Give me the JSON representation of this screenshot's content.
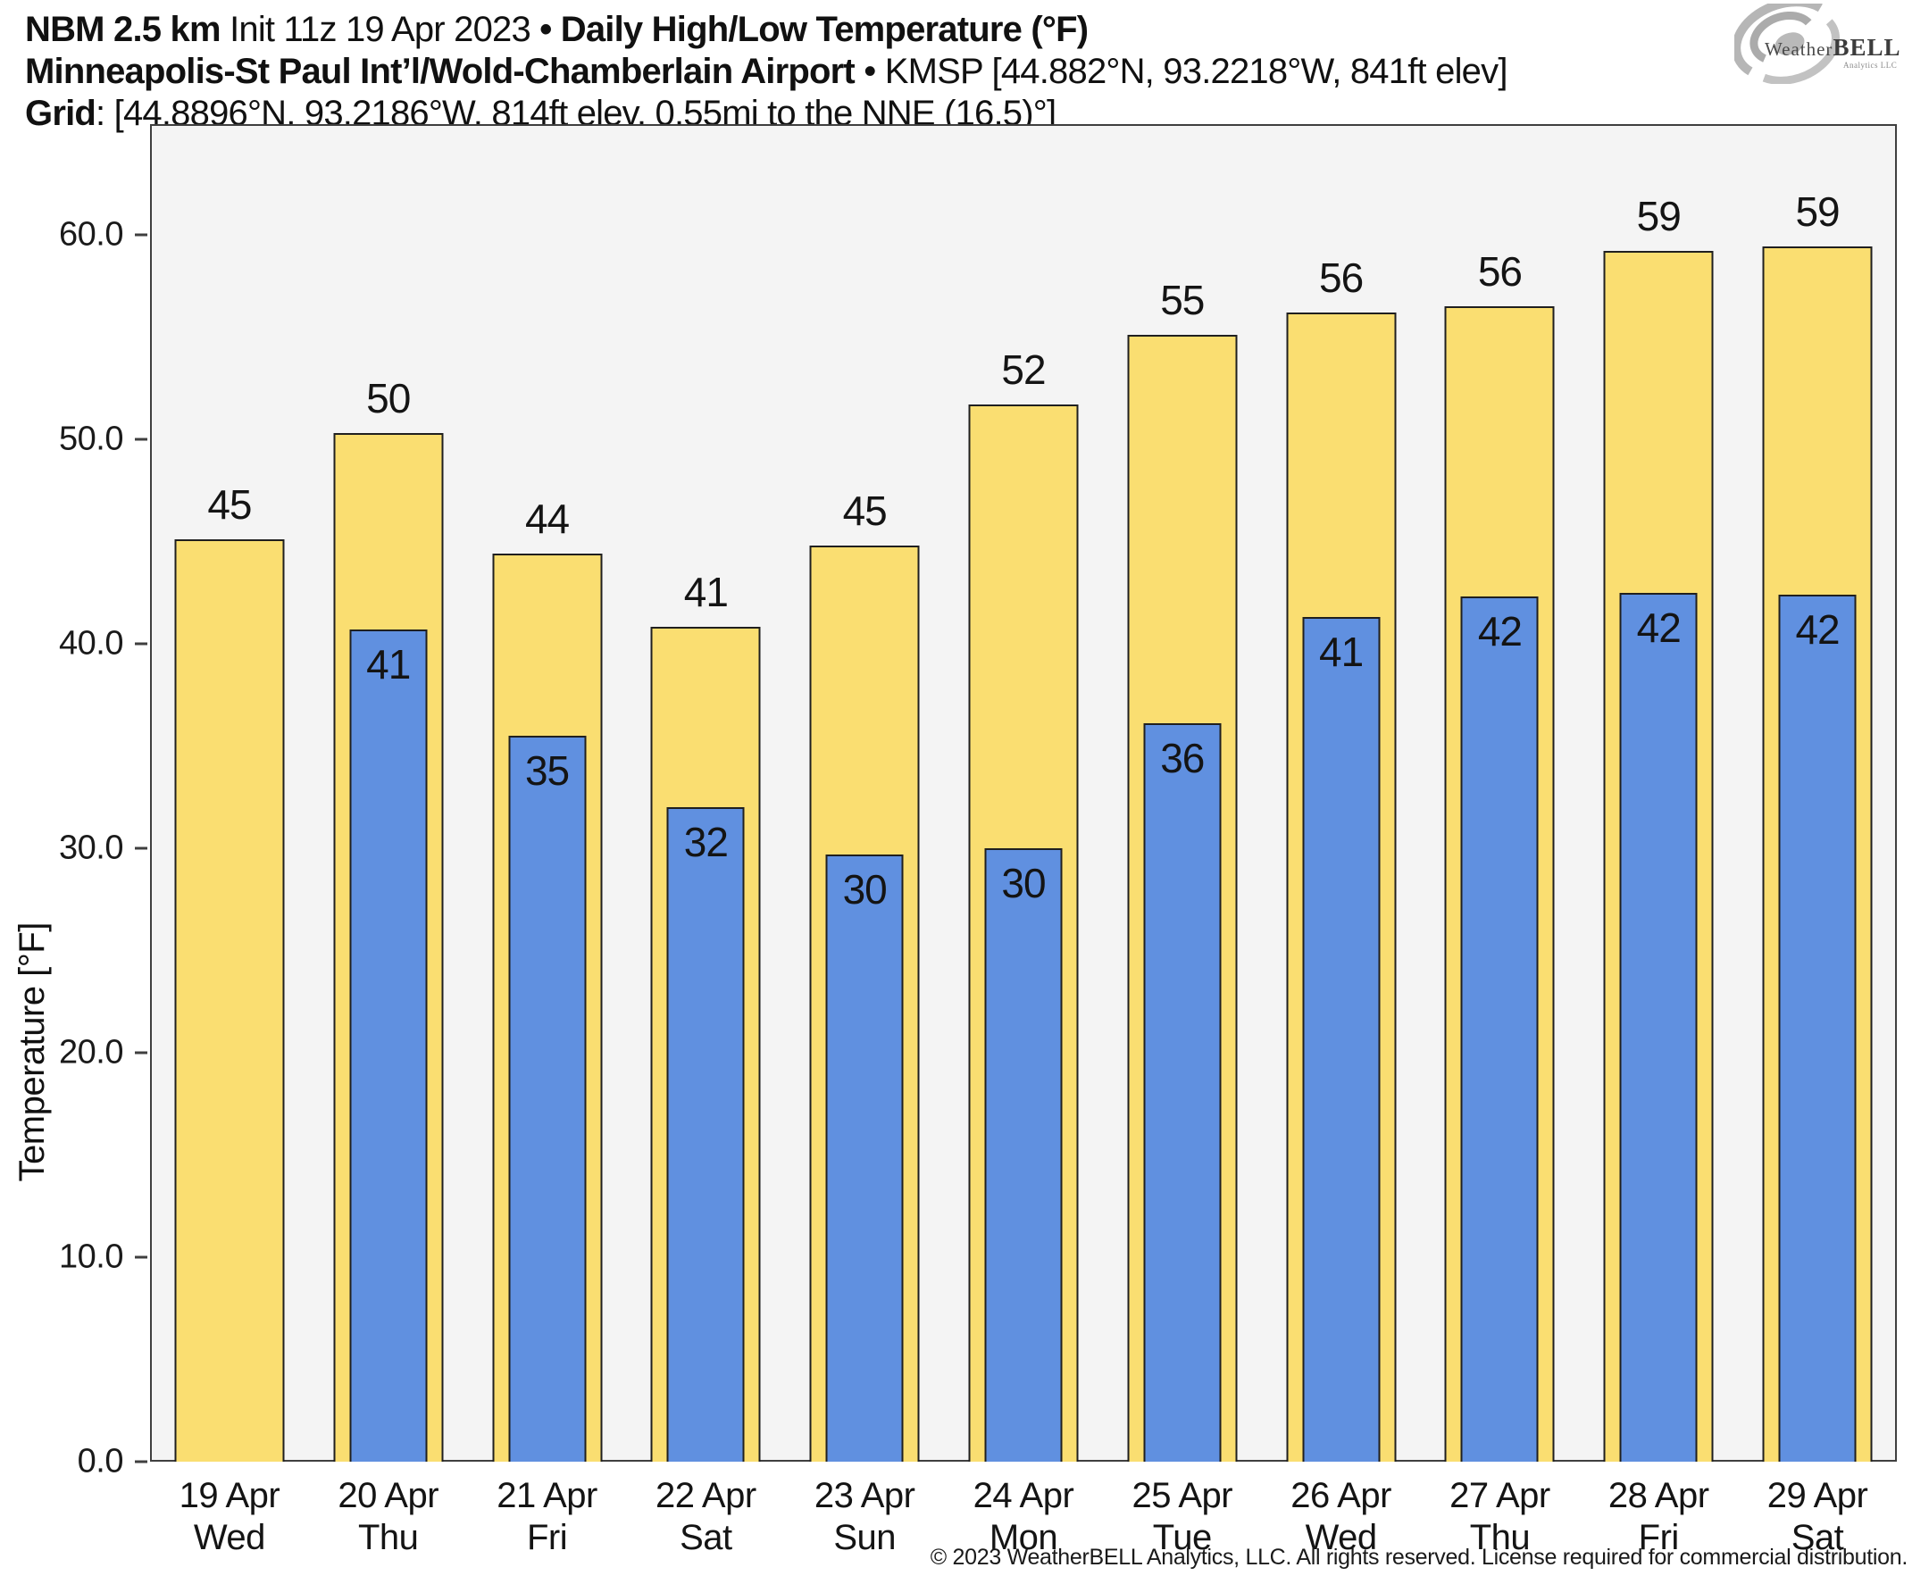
{
  "header": {
    "line1": {
      "model": "NBM 2.5 km",
      "init": " Init 11z 19 Apr 2023 ",
      "bullet": "•",
      "product": " Daily High/Low Temperature (°F)"
    },
    "line2": {
      "station": "Minneapolis-St Paul Int’l/Wold-Chamberlain Airport",
      "bullet": " • ",
      "details": "KMSP [44.882°N, 93.2218°W, 841ft elev]"
    },
    "line3": {
      "label": "Grid",
      "details": ": [44.8896°N, 93.2186°W, 814ft elev, 0.55mi to the NNE (16.5)°]"
    }
  },
  "logo": {
    "name_first": "Weather",
    "name_second": "BELL",
    "sub": "Analytics LLC"
  },
  "chart_data": {
    "type": "bar",
    "title": "NBM 2.5 km Init 11z 19 Apr 2023 • Daily High/Low Temperature (°F)",
    "subtitle": "Minneapolis-St Paul Int’l/Wold-Chamberlain Airport • KMSP [44.882°N, 93.2218°W, 841ft elev]",
    "xlabel": "",
    "ylabel": "Temperature [°F]",
    "ylim": [
      0,
      65.4
    ],
    "grid": false,
    "legend_position": "none",
    "plot_background": "#f4f4f4",
    "yticks": [
      {
        "v": 0,
        "label": "0.0"
      },
      {
        "v": 10,
        "label": "10.0"
      },
      {
        "v": 20,
        "label": "20.0"
      },
      {
        "v": 30,
        "label": "30.0"
      },
      {
        "v": 40,
        "label": "40.0"
      },
      {
        "v": 50,
        "label": "50.0"
      },
      {
        "v": 60,
        "label": "60.0"
      }
    ],
    "categories": [
      {
        "date": "19 Apr",
        "day": "Wed"
      },
      {
        "date": "20 Apr",
        "day": "Thu"
      },
      {
        "date": "21 Apr",
        "day": "Fri"
      },
      {
        "date": "22 Apr",
        "day": "Sat"
      },
      {
        "date": "23 Apr",
        "day": "Sun"
      },
      {
        "date": "24 Apr",
        "day": "Mon"
      },
      {
        "date": "25 Apr",
        "day": "Tue"
      },
      {
        "date": "26 Apr",
        "day": "Wed"
      },
      {
        "date": "27 Apr",
        "day": "Thu"
      },
      {
        "date": "28 Apr",
        "day": "Fri"
      },
      {
        "date": "29 Apr",
        "day": "Sat"
      }
    ],
    "series": [
      {
        "name": "Daily High",
        "color": "#FADE71",
        "values": [
          45.1,
          50.3,
          44.4,
          40.8,
          44.8,
          51.7,
          55.1,
          56.2,
          56.5,
          59.2,
          59.4
        ],
        "labels": [
          "45",
          "50",
          "44",
          "41",
          "45",
          "52",
          "55",
          "56",
          "56",
          "59",
          "59"
        ]
      },
      {
        "name": "Daily Low",
        "color": "#6090E0",
        "values": [
          null,
          40.7,
          35.5,
          32.0,
          29.7,
          30.0,
          36.1,
          41.3,
          42.3,
          42.5,
          42.4
        ],
        "labels": [
          null,
          "41",
          "35",
          "32",
          "30",
          "30",
          "36",
          "41",
          "42",
          "42",
          "42"
        ]
      }
    ]
  },
  "footer": {
    "copyright": "© 2023 WeatherBELL Analytics, LLC. All rights reserved. License required for commercial distribution."
  }
}
